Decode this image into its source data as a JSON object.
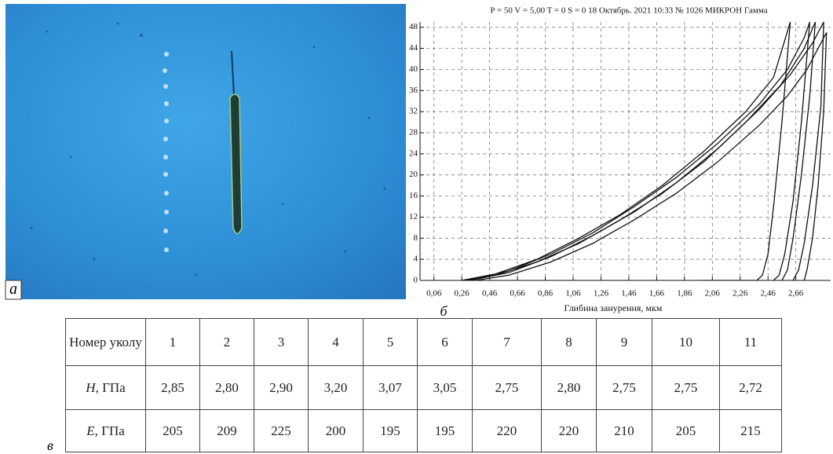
{
  "photo": {
    "label": "а"
  },
  "chart_data": {
    "type": "line",
    "title": "P = 50 V = 5,00 T = 0 S = 0    18 Октябрь. 2021 10:33 № 1026 МИКРОН Гамма",
    "x_label": "Глибина занурення, мкм",
    "panel_label": "б",
    "xlim": [
      -0.04,
      2.91
    ],
    "ylim": [
      0,
      49
    ],
    "grid": true,
    "xticks": [
      {
        "value": 0.06,
        "label": "0,06"
      },
      {
        "value": 0.26,
        "label": "0,26"
      },
      {
        "value": 0.46,
        "label": "0,46"
      },
      {
        "value": 0.66,
        "label": "0,66"
      },
      {
        "value": 0.86,
        "label": "0,86"
      },
      {
        "value": 1.06,
        "label": "1,06"
      },
      {
        "value": 1.26,
        "label": "1,26"
      },
      {
        "value": 1.46,
        "label": "1,46"
      },
      {
        "value": 1.66,
        "label": "1,66"
      },
      {
        "value": 1.86,
        "label": "1,86"
      },
      {
        "value": 2.06,
        "label": "2,06"
      },
      {
        "value": 2.26,
        "label": "2,26"
      },
      {
        "value": 2.46,
        "label": "2,46"
      },
      {
        "value": 2.66,
        "label": "2,66"
      }
    ],
    "yticks": [
      0,
      4,
      8,
      12,
      16,
      20,
      24,
      28,
      32,
      36,
      40,
      44,
      48
    ],
    "series": [
      {
        "color": "#111111",
        "x": [
          0.28,
          0.5,
          0.8,
          1.1,
          1.4,
          1.7,
          2.0,
          2.3,
          2.55,
          2.72,
          2.8,
          2.76,
          2.7,
          2.64,
          2.6,
          2.56
        ],
        "values": [
          0,
          1,
          3.5,
          7,
          11.5,
          16.5,
          22.5,
          30,
          37,
          44,
          49,
          35,
          20,
          8,
          2,
          0
        ]
      },
      {
        "color": "#111111",
        "x": [
          0.32,
          0.6,
          0.9,
          1.2,
          1.5,
          1.8,
          2.1,
          2.4,
          2.62,
          2.78,
          2.86,
          2.84,
          2.78,
          2.72,
          2.68,
          2.64
        ],
        "values": [
          0,
          1.5,
          4.5,
          8.5,
          13,
          18.5,
          25,
          32.5,
          39,
          45,
          49,
          33,
          18,
          7,
          2,
          0
        ]
      },
      {
        "color": "#111111",
        "x": [
          0.26,
          0.5,
          0.8,
          1.1,
          1.4,
          1.7,
          2.0,
          2.3,
          2.5,
          2.62,
          2.56,
          2.5,
          2.46,
          2.42,
          2.38,
          1.98
        ],
        "values": [
          0,
          1.2,
          4,
          8,
          12.5,
          18,
          24.5,
          32,
          38.5,
          49,
          30,
          14,
          5,
          1,
          0,
          0
        ]
      },
      {
        "color": "#111111",
        "x": [
          0.36,
          0.6,
          0.9,
          1.2,
          1.5,
          1.8,
          2.1,
          2.4,
          2.6,
          2.74,
          2.82,
          2.88,
          2.86,
          2.82,
          2.78,
          2.74,
          2.72
        ],
        "values": [
          0,
          1,
          3.5,
          7,
          11.5,
          16.5,
          22.5,
          29.5,
          35,
          40,
          44,
          47,
          32,
          18,
          8,
          2,
          0
        ]
      },
      {
        "color": "#111111",
        "x": [
          0.3,
          0.6,
          0.9,
          1.2,
          1.5,
          1.8,
          2.1,
          2.4,
          2.6,
          2.72,
          2.76,
          2.7,
          2.64,
          2.58,
          2.54,
          2.5
        ],
        "values": [
          0,
          1.8,
          5,
          9,
          14,
          19.5,
          26,
          33.5,
          40,
          46,
          49,
          30,
          15,
          5,
          1,
          0
        ]
      }
    ]
  },
  "table": {
    "label": "в",
    "header": [
      "Номер уколу",
      "1",
      "2",
      "3",
      "4",
      "5",
      "6",
      "7",
      "8",
      "9",
      "10",
      "11"
    ],
    "rows": [
      {
        "symbol": "H",
        "unit": ", ГПа",
        "cells": [
          "2,85",
          "2,80",
          "2,90",
          "3,20",
          "3,07",
          "3,05",
          "2,75",
          "2,80",
          "2,75",
          "2,75",
          "2,72"
        ]
      },
      {
        "symbol": "E",
        "unit": ", ГПа",
        "cells": [
          "205",
          "209",
          "225",
          "200",
          "195",
          "195",
          "220",
          "220",
          "210",
          "205",
          "215"
        ]
      }
    ]
  }
}
